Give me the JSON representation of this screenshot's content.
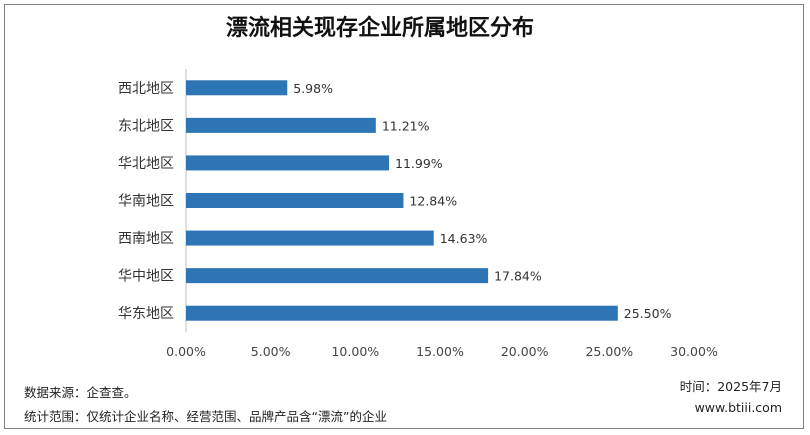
{
  "chart_data": {
    "type": "bar",
    "orientation": "horizontal",
    "title": "漂流相关现存企业所属地区分布",
    "categories": [
      "西北地区",
      "东北地区",
      "华北地区",
      "华南地区",
      "西南地区",
      "华中地区",
      "华东地区"
    ],
    "values": [
      5.98,
      11.21,
      11.99,
      12.84,
      14.63,
      17.84,
      25.5
    ],
    "value_labels": [
      "5.98%",
      "11.21%",
      "11.99%",
      "12.84%",
      "14.63%",
      "17.84%",
      "25.50%"
    ],
    "xlim": [
      0,
      30
    ],
    "x_ticks": [
      "0.00%",
      "5.00%",
      "10.00%",
      "15.00%",
      "20.00%",
      "25.00%",
      "30.00%"
    ],
    "grid": false,
    "bar_color": "#2e75b6"
  },
  "footer": {
    "source": "数据来源：企查查。",
    "scope": "统计范围：仅统计企业名称、经营范围、品牌产品含“漂流”的企业",
    "time": "时间：2025年7月",
    "site": "www.btiii.com"
  }
}
